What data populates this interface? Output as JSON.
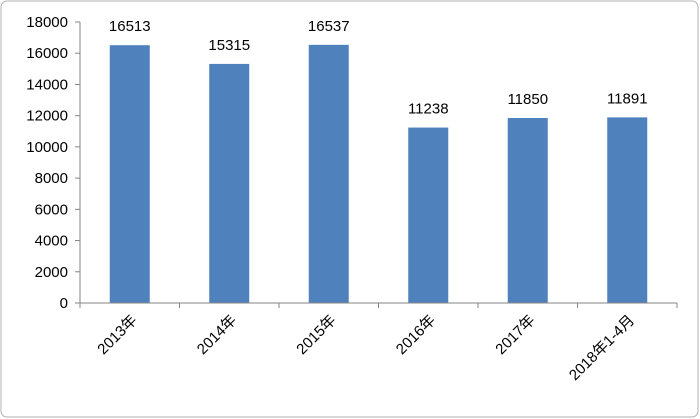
{
  "chart_data": {
    "type": "bar",
    "categories": [
      "2013年",
      "2014年",
      "2015年",
      "2016年",
      "2017年",
      "2018年1-4月"
    ],
    "values": [
      16513,
      15315,
      16537,
      11238,
      11850,
      11891
    ],
    "color": "#4f81bd",
    "ylim": [
      0,
      18000
    ],
    "yticks": [
      0,
      2000,
      4000,
      6000,
      8000,
      10000,
      12000,
      14000,
      16000,
      18000
    ],
    "grid": false
  }
}
